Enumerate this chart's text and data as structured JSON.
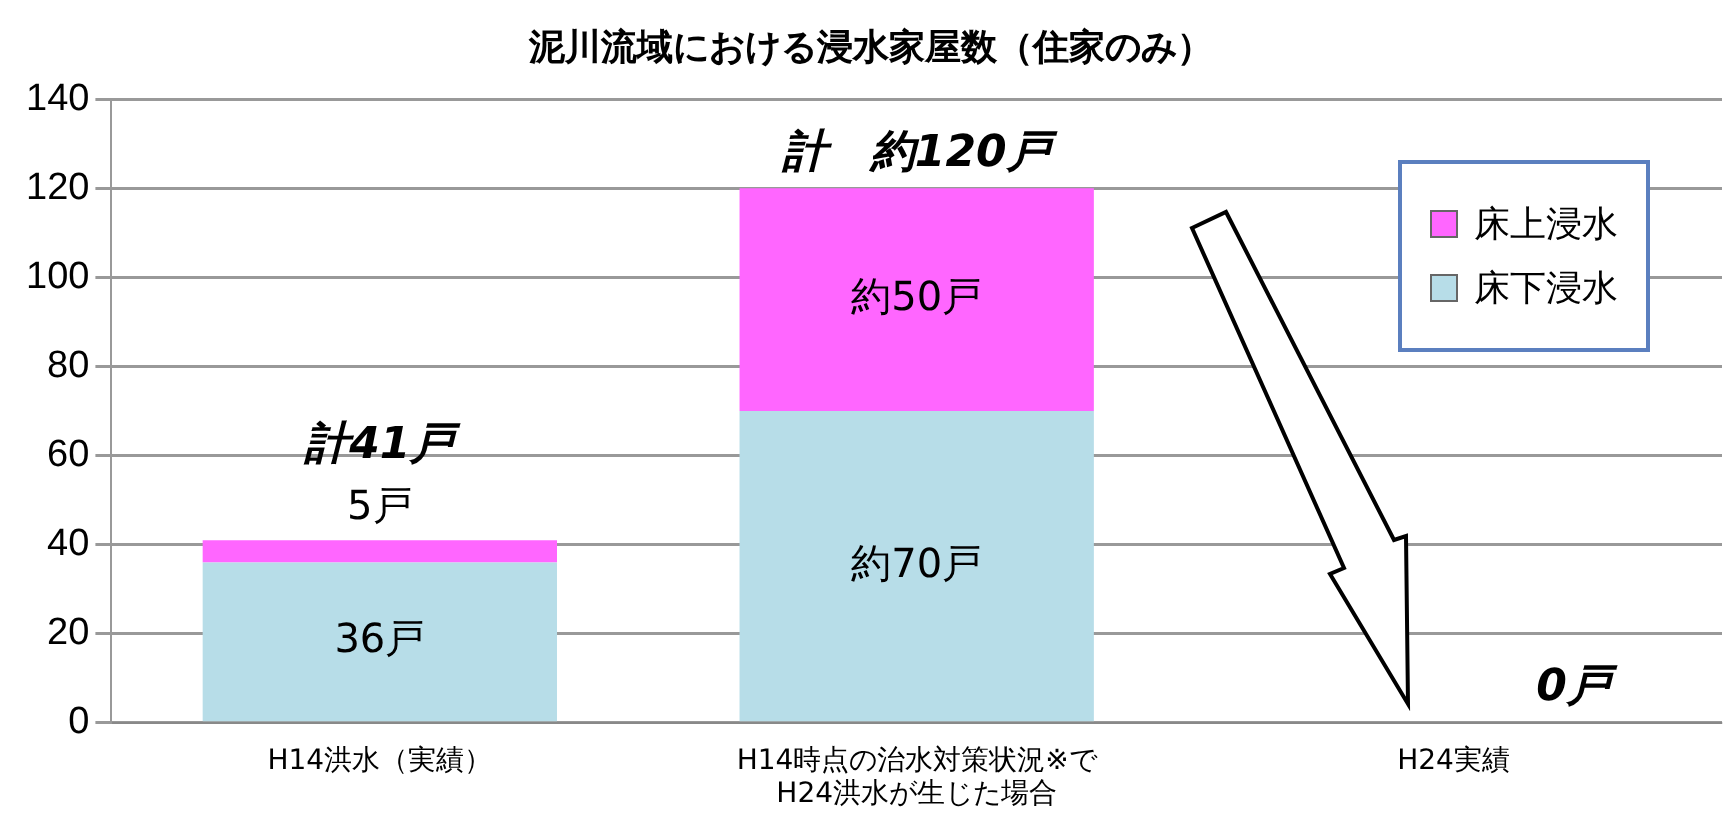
{
  "chart_data": {
    "type": "bar",
    "title": "泥川流域における浸水家屋数（住家のみ）",
    "stacked": true,
    "categories": [
      "H14洪水（実績）",
      "H14時点の治水対策状況※で\nH24洪水が生じた場合",
      "H24実績"
    ],
    "series": [
      {
        "name": "床下浸水",
        "color": "#b7dde8",
        "values": [
          36,
          70,
          0
        ],
        "value_labels": [
          "36戸",
          "約70戸",
          null
        ]
      },
      {
        "name": "床上浸水",
        "color": "#ff66ff",
        "values": [
          5,
          50,
          0
        ],
        "value_labels": [
          "5戸",
          "約50戸",
          null
        ]
      }
    ],
    "totals": [
      "計41戸",
      "計　約120戸",
      "0戸"
    ],
    "ylim": [
      0,
      140
    ],
    "yticks": [
      0,
      20,
      40,
      60,
      80,
      100,
      120,
      140
    ],
    "grid": "y",
    "legend": "top right"
  }
}
